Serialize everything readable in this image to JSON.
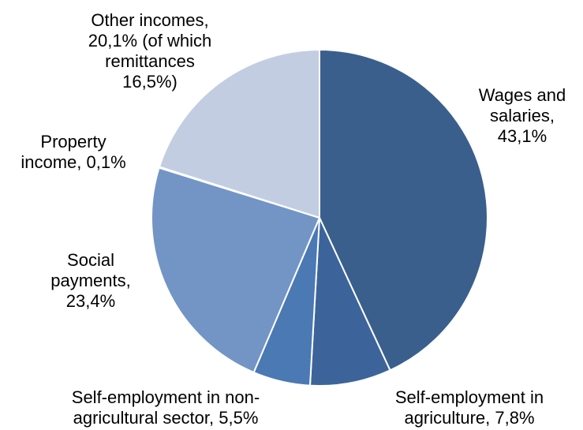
{
  "chart_data": {
    "type": "pie",
    "title": "",
    "slices": [
      {
        "label": "Wages and\nsalaries,\n43,1%",
        "value": 43.1,
        "color": "#3A5F8D"
      },
      {
        "label": "Self-employment in\nagriculture, 7,8%",
        "value": 7.8,
        "color": "#3C649B"
      },
      {
        "label": "Self-employment in non-\nagricultural sector, 5,5%",
        "value": 5.5,
        "color": "#4A79B4"
      },
      {
        "label": "Social\npayments,\n23,4%",
        "value": 23.4,
        "color": "#7295C6"
      },
      {
        "label": "Property\nincome, 0,1%",
        "value": 0.1,
        "color": "#A3B6D6"
      },
      {
        "label": "Other incomes,\n20,1% (of which\nremittances\n16,5%)",
        "value": 20.1,
        "color": "#C3CDE2"
      }
    ]
  }
}
